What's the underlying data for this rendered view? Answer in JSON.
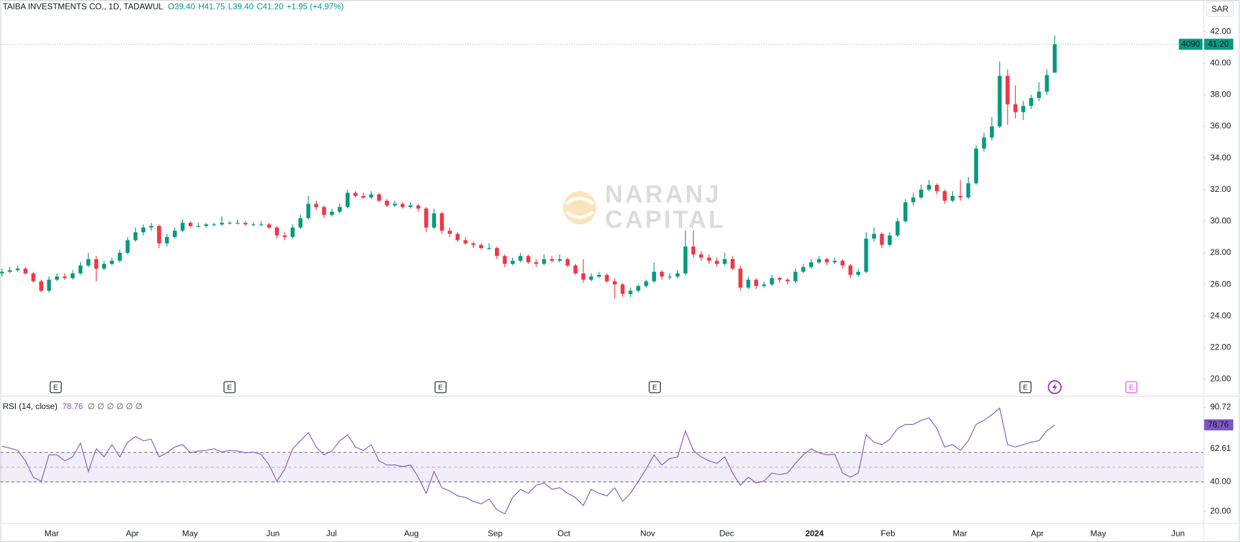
{
  "chart_data": {
    "type": "candlestick",
    "title": "TAIBA INVESTMENTS CO., 1D, TADAWUL",
    "ohlc": {
      "open": "O39.40",
      "high": "H41.75",
      "low": "L39.40",
      "close": "C41.20",
      "change": "+1.95 (+4.97%)"
    },
    "currency": "SAR",
    "watermark": [
      "NARANJ",
      "CAPITAL"
    ],
    "up_color": "#089981",
    "down_color": "#f23645",
    "ylim": [
      19,
      44
    ],
    "yticks": [
      {
        "value": 20,
        "label": "20.00"
      },
      {
        "value": 22,
        "label": "22.00"
      },
      {
        "value": 24,
        "label": "24.00"
      },
      {
        "value": 26,
        "label": "26.00"
      },
      {
        "value": 28,
        "label": "28.00"
      },
      {
        "value": 30,
        "label": "30.00"
      },
      {
        "value": 32,
        "label": "32.00"
      },
      {
        "value": 34,
        "label": "34.00"
      },
      {
        "value": 36,
        "label": "36.00"
      },
      {
        "value": 38,
        "label": "38.00"
      },
      {
        "value": 40,
        "label": "40.00"
      },
      {
        "value": 42,
        "label": "42.00"
      }
    ],
    "grid": false,
    "last_price": {
      "value": 41.2,
      "label": "41.20",
      "countdown": "4090"
    },
    "x_labels": [
      "Mar",
      "Apr",
      "May",
      "Jun",
      "Jul",
      "Aug",
      "Sep",
      "Oct",
      "Nov",
      "Dec",
      "2024",
      "Feb",
      "Mar",
      "Apr",
      "May",
      "Jun"
    ],
    "events": [
      "E",
      "E",
      "E",
      "E",
      "E"
    ],
    "future_event": "E",
    "series": [
      {
        "values": [
          [
            26.7,
            27.0,
            26.5,
            26.8
          ],
          [
            26.8,
            27.1,
            26.7,
            26.9
          ],
          [
            26.9,
            27.2,
            26.8,
            27.0
          ],
          [
            27.0,
            27.1,
            26.6,
            26.7
          ],
          [
            26.7,
            26.8,
            26.1,
            26.2
          ],
          [
            26.2,
            26.3,
            25.5,
            25.6
          ],
          [
            25.6,
            26.5,
            25.5,
            26.3
          ],
          [
            26.3,
            26.7,
            26.2,
            26.5
          ],
          [
            26.5,
            26.7,
            26.3,
            26.4
          ],
          [
            26.4,
            26.9,
            26.3,
            26.7
          ],
          [
            26.7,
            27.4,
            26.6,
            27.2
          ],
          [
            27.2,
            28.0,
            27.1,
            27.6
          ],
          [
            27.6,
            27.8,
            26.2,
            27.0
          ],
          [
            27.0,
            27.5,
            26.9,
            27.3
          ],
          [
            27.3,
            27.7,
            27.2,
            27.5
          ],
          [
            27.5,
            28.2,
            27.4,
            28.0
          ],
          [
            28.0,
            29.0,
            27.9,
            28.8
          ],
          [
            28.8,
            29.6,
            28.7,
            29.3
          ],
          [
            29.3,
            29.8,
            29.1,
            29.6
          ],
          [
            29.6,
            29.9,
            29.4,
            29.7
          ],
          [
            29.7,
            29.8,
            28.3,
            28.6
          ],
          [
            28.6,
            29.2,
            28.4,
            29.0
          ],
          [
            29.0,
            29.6,
            28.9,
            29.4
          ],
          [
            29.4,
            30.1,
            29.3,
            29.9
          ],
          [
            29.9,
            30.0,
            29.6,
            29.7
          ],
          [
            29.7,
            29.9,
            29.6,
            29.7
          ],
          [
            29.7,
            29.9,
            29.6,
            29.8
          ],
          [
            29.8,
            29.9,
            29.7,
            29.8
          ],
          [
            29.8,
            30.3,
            29.7,
            29.9
          ],
          [
            29.9,
            30.0,
            29.8,
            29.9
          ],
          [
            29.9,
            30.1,
            29.8,
            29.9
          ],
          [
            29.9,
            30.0,
            29.7,
            29.8
          ],
          [
            29.8,
            29.9,
            29.7,
            29.8
          ],
          [
            29.8,
            30.0,
            29.7,
            29.8
          ],
          [
            29.8,
            29.9,
            29.5,
            29.6
          ],
          [
            29.6,
            29.7,
            28.9,
            29.1
          ],
          [
            29.1,
            29.3,
            28.8,
            29.0
          ],
          [
            29.0,
            29.8,
            28.9,
            29.6
          ],
          [
            29.6,
            30.4,
            29.5,
            30.2
          ],
          [
            30.2,
            31.6,
            30.1,
            31.1
          ],
          [
            31.1,
            31.3,
            30.7,
            30.9
          ],
          [
            30.9,
            31.0,
            30.2,
            30.4
          ],
          [
            30.4,
            30.8,
            30.3,
            30.6
          ],
          [
            30.6,
            31.1,
            30.5,
            30.9
          ],
          [
            30.9,
            32.0,
            30.8,
            31.8
          ],
          [
            31.8,
            31.9,
            31.5,
            31.6
          ],
          [
            31.6,
            31.8,
            31.4,
            31.5
          ],
          [
            31.5,
            31.9,
            31.4,
            31.7
          ],
          [
            31.7,
            31.8,
            31.2,
            31.3
          ],
          [
            31.3,
            31.4,
            30.9,
            31.0
          ],
          [
            31.0,
            31.3,
            30.9,
            31.1
          ],
          [
            31.1,
            31.2,
            30.8,
            30.9
          ],
          [
            30.9,
            31.2,
            30.8,
            31.0
          ],
          [
            31.0,
            31.1,
            30.6,
            30.8
          ],
          [
            30.8,
            30.9,
            29.3,
            29.6
          ],
          [
            29.6,
            30.8,
            29.5,
            30.5
          ],
          [
            30.5,
            30.6,
            29.2,
            29.4
          ],
          [
            29.4,
            29.6,
            29.0,
            29.2
          ],
          [
            29.2,
            29.3,
            28.7,
            28.8
          ],
          [
            28.8,
            29.0,
            28.5,
            28.6
          ],
          [
            28.6,
            28.7,
            28.3,
            28.5
          ],
          [
            28.5,
            28.6,
            28.2,
            28.3
          ],
          [
            28.3,
            28.6,
            28.2,
            28.3
          ],
          [
            28.3,
            28.4,
            27.6,
            27.8
          ],
          [
            27.8,
            27.9,
            27.1,
            27.3
          ],
          [
            27.3,
            27.7,
            27.2,
            27.5
          ],
          [
            27.5,
            28.0,
            27.4,
            27.8
          ],
          [
            27.8,
            27.9,
            27.3,
            27.4
          ],
          [
            27.4,
            27.6,
            27.1,
            27.3
          ],
          [
            27.3,
            27.9,
            27.2,
            27.6
          ],
          [
            27.6,
            27.8,
            27.4,
            27.5
          ],
          [
            27.5,
            27.9,
            27.4,
            27.6
          ],
          [
            27.6,
            27.7,
            27.1,
            27.2
          ],
          [
            27.2,
            27.3,
            26.6,
            26.7
          ],
          [
            26.7,
            27.6,
            26.1,
            26.3
          ],
          [
            26.3,
            26.7,
            26.2,
            26.5
          ],
          [
            26.5,
            26.8,
            26.4,
            26.6
          ],
          [
            26.6,
            26.7,
            26.1,
            26.2
          ],
          [
            26.2,
            26.4,
            25.1,
            26.0
          ],
          [
            26.0,
            26.1,
            25.2,
            25.4
          ],
          [
            25.4,
            25.8,
            25.2,
            25.6
          ],
          [
            25.6,
            26.0,
            25.5,
            25.9
          ],
          [
            25.9,
            26.3,
            25.8,
            26.2
          ],
          [
            26.2,
            27.4,
            26.1,
            26.8
          ],
          [
            26.8,
            26.9,
            26.3,
            26.5
          ],
          [
            26.5,
            26.7,
            26.3,
            26.5
          ],
          [
            26.5,
            26.9,
            26.4,
            26.7
          ],
          [
            26.7,
            29.4,
            26.6,
            28.4
          ],
          [
            28.4,
            29.4,
            27.7,
            27.9
          ],
          [
            27.9,
            28.1,
            27.5,
            27.7
          ],
          [
            27.7,
            27.9,
            27.3,
            27.5
          ],
          [
            27.5,
            27.7,
            27.1,
            27.3
          ],
          [
            27.3,
            28.0,
            27.2,
            27.6
          ],
          [
            27.6,
            27.8,
            26.9,
            27.0
          ],
          [
            27.0,
            27.2,
            25.6,
            25.8
          ],
          [
            25.8,
            26.5,
            25.7,
            26.3
          ],
          [
            26.3,
            26.4,
            25.7,
            25.9
          ],
          [
            25.9,
            26.2,
            25.8,
            26.0
          ],
          [
            26.0,
            26.6,
            25.9,
            26.4
          ],
          [
            26.4,
            26.5,
            26.1,
            26.3
          ],
          [
            26.3,
            26.4,
            26.0,
            26.2
          ],
          [
            26.2,
            27.0,
            26.1,
            26.8
          ],
          [
            26.8,
            27.3,
            26.7,
            27.1
          ],
          [
            27.1,
            27.6,
            27.0,
            27.4
          ],
          [
            27.4,
            27.8,
            27.3,
            27.6
          ],
          [
            27.6,
            27.7,
            27.2,
            27.4
          ],
          [
            27.4,
            27.7,
            27.3,
            27.5
          ],
          [
            27.5,
            27.6,
            27.0,
            27.2
          ],
          [
            27.2,
            27.3,
            26.4,
            26.6
          ],
          [
            26.6,
            27.0,
            26.5,
            26.8
          ],
          [
            26.8,
            29.3,
            26.7,
            28.9
          ],
          [
            28.9,
            29.6,
            28.7,
            29.2
          ],
          [
            29.2,
            29.3,
            28.3,
            28.5
          ],
          [
            28.5,
            29.3,
            28.4,
            29.1
          ],
          [
            29.1,
            30.2,
            29.0,
            30.0
          ],
          [
            30.0,
            31.4,
            29.9,
            31.2
          ],
          [
            31.2,
            31.8,
            31.0,
            31.5
          ],
          [
            31.5,
            32.3,
            31.4,
            32.0
          ],
          [
            32.0,
            32.6,
            31.9,
            32.3
          ],
          [
            32.3,
            32.4,
            31.7,
            31.9
          ],
          [
            31.9,
            32.0,
            31.1,
            31.3
          ],
          [
            31.3,
            31.9,
            31.2,
            31.6
          ],
          [
            31.6,
            32.6,
            31.3,
            31.5
          ],
          [
            31.5,
            32.8,
            31.4,
            32.4
          ],
          [
            32.4,
            34.8,
            32.3,
            34.6
          ],
          [
            34.6,
            35.6,
            34.4,
            35.3
          ],
          [
            35.3,
            36.6,
            35.1,
            36.0
          ],
          [
            36.0,
            40.1,
            35.9,
            39.2
          ],
          [
            39.2,
            39.6,
            36.1,
            37.4
          ],
          [
            37.4,
            38.6,
            36.5,
            36.9
          ],
          [
            36.9,
            37.6,
            36.4,
            37.3
          ],
          [
            37.3,
            38.0,
            37.1,
            37.8
          ],
          [
            37.8,
            38.8,
            37.6,
            38.2
          ],
          [
            38.2,
            39.6,
            38.0,
            39.25
          ],
          [
            39.4,
            41.75,
            39.4,
            41.2
          ]
        ]
      }
    ],
    "rsi": {
      "title": "RSI (14, close)",
      "indicator_icons": "∅ ∅ ∅ ∅ ∅ ∅",
      "value_label": "78.76",
      "color": "#7e57c2",
      "ylim": [
        12,
        98
      ],
      "yticks": [
        {
          "value": 20,
          "label": "20.00"
        },
        {
          "value": 40,
          "label": "40.00"
        },
        {
          "value": 62.61,
          "label": "62.61"
        },
        {
          "value": 90.72,
          "label": "90.72"
        }
      ],
      "band": [
        40,
        60
      ],
      "mid": 50,
      "values": [
        64.2,
        63,
        61.4,
        54.3,
        43.2,
        40.5,
        58.4,
        58.4,
        54.3,
        57,
        66.4,
        47,
        62.5,
        57,
        65.3,
        57,
        67,
        70.8,
        68,
        69,
        57,
        59.8,
        63.7,
        65.3,
        59.8,
        61,
        61.4,
        62.5,
        60.3,
        61.4,
        61,
        59.8,
        60.3,
        58.7,
        51.5,
        40.5,
        48.7,
        62.5,
        68,
        73.6,
        63.7,
        58.4,
        61,
        68,
        72,
        63.7,
        61.4,
        65.3,
        54.3,
        51.5,
        51.5,
        50.4,
        51.5,
        43.2,
        32.2,
        47,
        36,
        33.8,
        30.5,
        29.4,
        26.7,
        25,
        28.3,
        21.1,
        18.3,
        29.4,
        34.9,
        32.2,
        37.7,
        39.3,
        34.9,
        36,
        32.2,
        29.4,
        23.9,
        34.9,
        32.2,
        30.5,
        36,
        26.7,
        32.2,
        40.5,
        48.7,
        58.4,
        51.5,
        55.9,
        57,
        74.7,
        61.4,
        57,
        54.3,
        52.6,
        57,
        46,
        37.7,
        43.2,
        39.3,
        40.5,
        46,
        44.9,
        46,
        52.6,
        58.4,
        62.5,
        59.8,
        58.4,
        58.7,
        46,
        43.2,
        46,
        72,
        67,
        65.3,
        69,
        76.4,
        79.1,
        79.1,
        81.9,
        83.5,
        76.4,
        63.7,
        65.3,
        61.4,
        68,
        79.1,
        81.9,
        85.7,
        90.2,
        65.3,
        63.7,
        65.3,
        67,
        68,
        74.7,
        78.76
      ]
    }
  }
}
